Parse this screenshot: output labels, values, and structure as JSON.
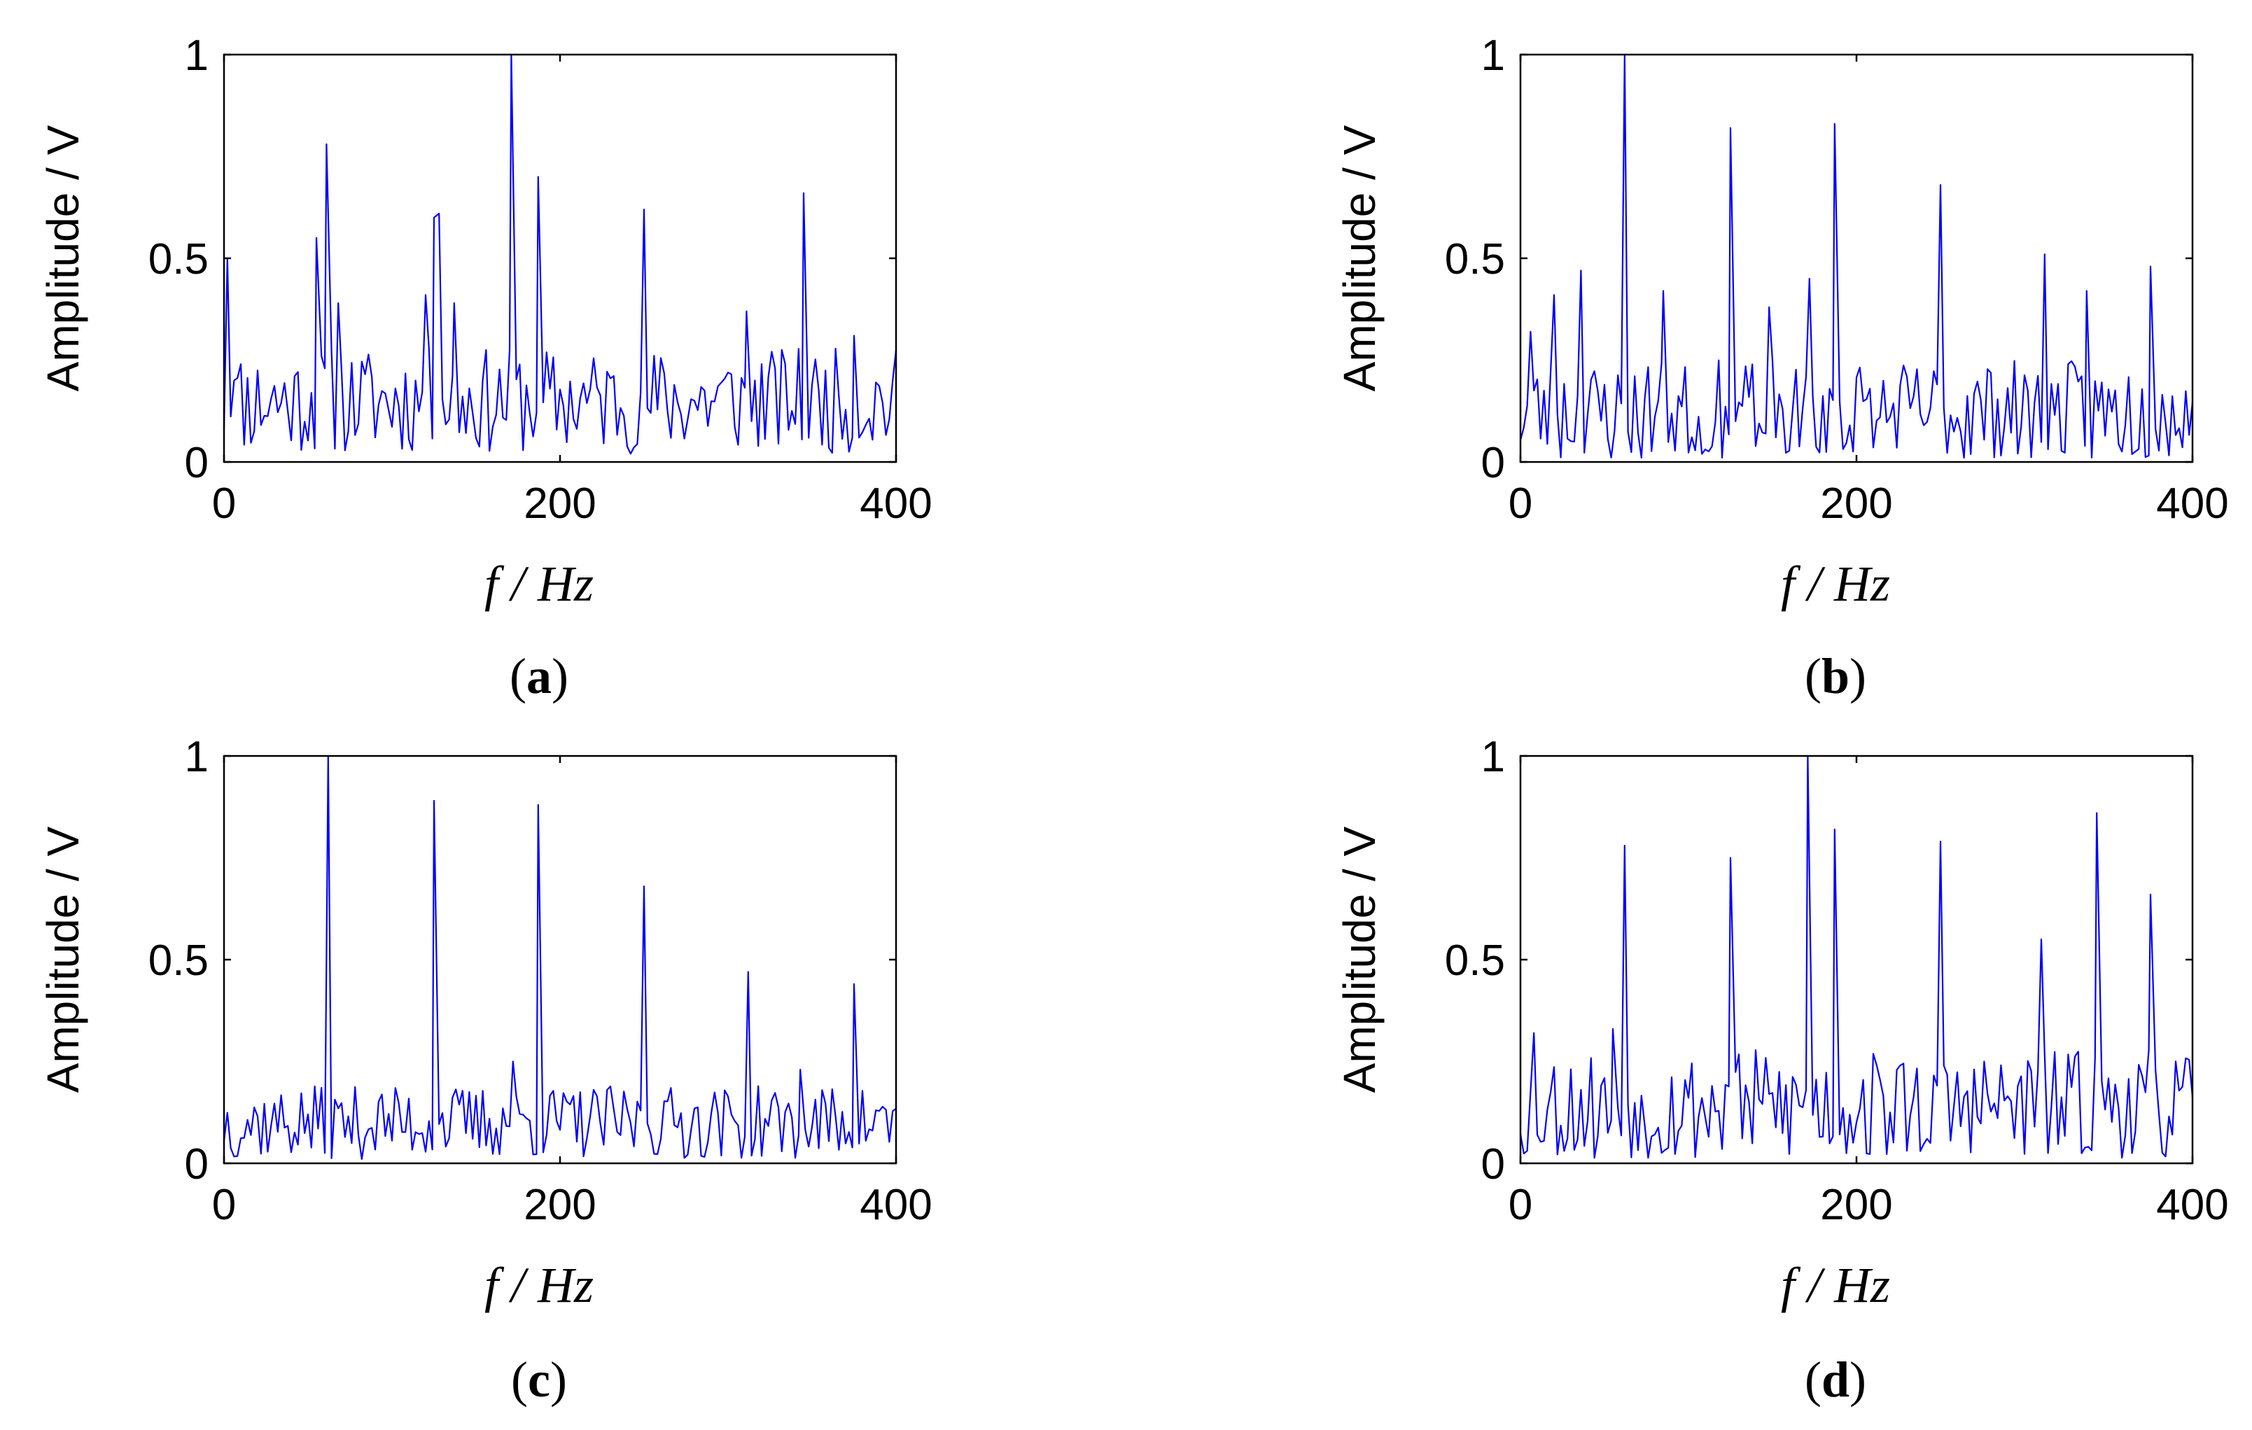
{
  "line_color": "#0000ff",
  "chart_data": [
    {
      "type": "line",
      "panel": "a",
      "caption_open": "(",
      "caption_letter": "a",
      "caption_close": ")",
      "xlabel": "f / Hz",
      "ylabel": "Amplitude / V",
      "xlim": [
        0,
        400
      ],
      "ylim": [
        0,
        1
      ],
      "xticks": [
        0,
        200,
        400
      ],
      "xtick_labels": [
        "0",
        "200",
        "400"
      ],
      "yticks": [
        0,
        0.5,
        1
      ],
      "ytick_labels": [
        "0",
        "0.5",
        "1"
      ],
      "peaks": [
        [
          2,
          0.5
        ],
        [
          6,
          0.2
        ],
        [
          55,
          0.55
        ],
        [
          61,
          0.78
        ],
        [
          68,
          0.39
        ],
        [
          120,
          0.41
        ],
        [
          125,
          0.6
        ],
        [
          128,
          0.61
        ],
        [
          137,
          0.39
        ],
        [
          171,
          1.0
        ],
        [
          187,
          0.7
        ],
        [
          250,
          0.62
        ],
        [
          311,
          0.37
        ],
        [
          345,
          0.66
        ],
        [
          375,
          0.31
        ]
      ],
      "baseline_seed": 11,
      "baseline_mean": 0.15,
      "baseline_spread": 0.13
    },
    {
      "type": "line",
      "panel": "b",
      "caption_open": "(",
      "caption_letter": "b",
      "caption_close": ")",
      "xlabel": "f / Hz",
      "ylabel": "Amplitude / V",
      "xlim": [
        0,
        400
      ],
      "ylim": [
        0,
        1
      ],
      "xticks": [
        0,
        200,
        400
      ],
      "xtick_labels": [
        "0",
        "200",
        "400"
      ],
      "yticks": [
        0,
        0.5,
        1
      ],
      "ytick_labels": [
        "0",
        "0.5",
        "1"
      ],
      "peaks": [
        [
          6,
          0.32
        ],
        [
          20,
          0.41
        ],
        [
          36,
          0.47
        ],
        [
          62,
          1.0
        ],
        [
          85,
          0.42
        ],
        [
          125,
          0.82
        ],
        [
          148,
          0.38
        ],
        [
          172,
          0.45
        ],
        [
          187,
          0.83
        ],
        [
          250,
          0.68
        ],
        [
          312,
          0.51
        ],
        [
          337,
          0.42
        ],
        [
          375,
          0.48
        ]
      ],
      "baseline_seed": 23,
      "baseline_mean": 0.12,
      "baseline_spread": 0.13
    },
    {
      "type": "line",
      "panel": "c",
      "caption_open": "(",
      "caption_letter": "c",
      "caption_close": ")",
      "xlabel": "f / Hz",
      "ylabel": "Amplitude / V",
      "xlim": [
        0,
        400
      ],
      "ylim": [
        0,
        1
      ],
      "xticks": [
        0,
        200,
        400
      ],
      "xtick_labels": [
        "0",
        "200",
        "400"
      ],
      "yticks": [
        0,
        0.5,
        1
      ],
      "ytick_labels": [
        "0",
        "0.5",
        "1"
      ],
      "peaks": [
        [
          62,
          1.0
        ],
        [
          125,
          0.89
        ],
        [
          172,
          0.25
        ],
        [
          187,
          0.88
        ],
        [
          250,
          0.68
        ],
        [
          312,
          0.47
        ],
        [
          343,
          0.23
        ],
        [
          375,
          0.44
        ]
      ],
      "baseline_seed": 37,
      "baseline_mean": 0.1,
      "baseline_spread": 0.09
    },
    {
      "type": "line",
      "panel": "d",
      "caption_open": "(",
      "caption_letter": "d",
      "caption_close": ")",
      "xlabel": "f / Hz",
      "ylabel": "Amplitude / V",
      "xlim": [
        0,
        400
      ],
      "ylim": [
        0,
        1
      ],
      "xticks": [
        0,
        200,
        400
      ],
      "xtick_labels": [
        "0",
        "200",
        "400"
      ],
      "yticks": [
        0,
        0.5,
        1
      ],
      "ytick_labels": [
        "0",
        "0.5",
        "1"
      ],
      "peaks": [
        [
          8,
          0.32
        ],
        [
          55,
          0.33
        ],
        [
          62,
          0.78
        ],
        [
          125,
          0.75
        ],
        [
          171,
          1.0
        ],
        [
          187,
          0.82
        ],
        [
          250,
          0.79
        ],
        [
          310,
          0.55
        ],
        [
          343,
          0.86
        ],
        [
          375,
          0.66
        ]
      ],
      "baseline_seed": 53,
      "baseline_mean": 0.14,
      "baseline_spread": 0.14
    }
  ]
}
